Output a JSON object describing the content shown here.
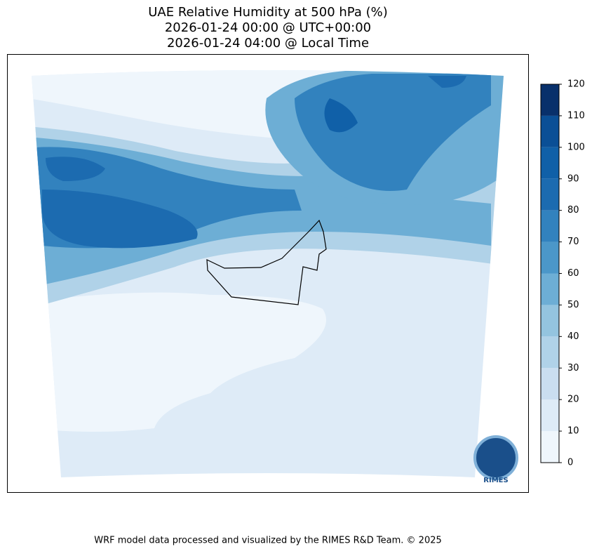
{
  "title": [
    "UAE Relative Humidity at 500 hPa (%)",
    "2026-01-24 00:00 @ UTC+00:00",
    "2026-01-24 04:00 @ Local Time"
  ],
  "colorbar": {
    "ticks": [
      0,
      10,
      20,
      30,
      40,
      50,
      60,
      70,
      80,
      90,
      100,
      110,
      120
    ],
    "colors": [
      "#eff6fc",
      "#deebf7",
      "#cadef0",
      "#b0d2e8",
      "#94c4df",
      "#6daed5",
      "#4b97c9",
      "#3282be",
      "#1c6bb0",
      "#1060a8",
      "#0a4f96",
      "#08306b"
    ]
  },
  "logo": {
    "text": "RIMES"
  },
  "footer": "WRF model data processed and visualized by the RIMES R&D Team. © 2025"
}
